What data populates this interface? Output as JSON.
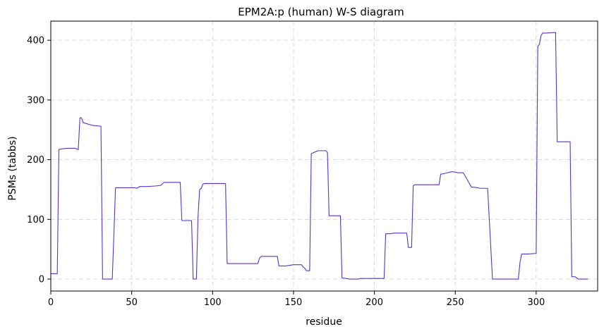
{
  "chart_data": {
    "type": "line",
    "title": "EPM2A:p (human) W-S diagram",
    "xlabel": "residue",
    "ylabel": "PSMs (tabbs)",
    "xlim": [
      0,
      338
    ],
    "ylim": [
      -20,
      432
    ],
    "xticks": [
      0,
      50,
      100,
      150,
      200,
      250,
      300
    ],
    "yticks": [
      0,
      100,
      200,
      300,
      400
    ],
    "grid": true,
    "legend": false,
    "line_color": "#5b2fd9",
    "series": [
      {
        "x": [
          0,
          4,
          5,
          7,
          10,
          15,
          17,
          18,
          19,
          20,
          25,
          27,
          31,
          32,
          38,
          40,
          45,
          52,
          53,
          55,
          60,
          65,
          68,
          70,
          80,
          81,
          87,
          88,
          90,
          91,
          92,
          93,
          94,
          95,
          96,
          108,
          109,
          115,
          120,
          125,
          128,
          129,
          130,
          140,
          141,
          145,
          150,
          155,
          156,
          157,
          158,
          160,
          161,
          165,
          170,
          171,
          172,
          179,
          180,
          185,
          190,
          191,
          200,
          206,
          207,
          210,
          212,
          220,
          221,
          223,
          224,
          225,
          230,
          240,
          241,
          242,
          245,
          248,
          252,
          255,
          260,
          261,
          264,
          265,
          270,
          273,
          274,
          289,
          290,
          291,
          292,
          295,
          300,
          301,
          302,
          303,
          304,
          306,
          312,
          313,
          316,
          321,
          322,
          324,
          326,
          328,
          330,
          332
        ],
        "y": [
          9,
          9,
          217,
          218,
          219,
          219,
          217,
          270,
          270,
          262,
          258,
          257,
          256,
          0,
          0,
          153,
          153,
          153,
          152,
          155,
          155,
          156,
          157,
          162,
          162,
          98,
          98,
          0,
          0,
          105,
          150,
          152,
          159,
          160,
          160,
          160,
          26,
          26,
          26,
          26,
          26,
          35,
          38,
          38,
          22,
          22,
          24,
          24,
          20,
          18,
          14,
          14,
          210,
          215,
          215,
          212,
          106,
          106,
          2,
          0,
          0,
          1,
          1,
          1,
          76,
          76,
          77,
          77,
          53,
          53,
          156,
          158,
          158,
          158,
          176,
          176,
          178,
          180,
          178,
          178,
          154,
          154,
          153,
          152,
          152,
          0,
          0,
          0,
          28,
          42,
          42,
          42,
          43,
          390,
          393,
          408,
          412,
          412,
          413,
          230,
          230,
          230,
          4,
          4,
          0,
          0,
          0,
          0
        ]
      }
    ]
  }
}
